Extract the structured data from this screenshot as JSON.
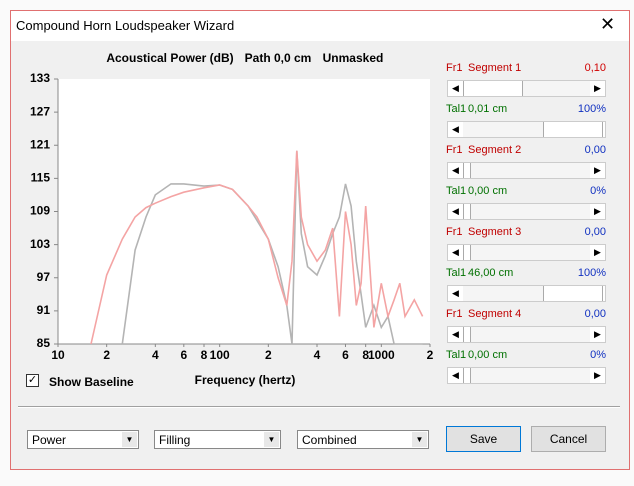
{
  "window": {
    "title": "Compound Horn Loudspeaker Wizard"
  },
  "chart_data": {
    "type": "line",
    "title": "Acoustical Power (dB)",
    "annotations": [
      "Path 0,0 cm",
      "Unmasked"
    ],
    "xlabel": "Frequency (hertz)",
    "x": [
      16,
      20,
      25,
      30,
      35,
      40,
      50,
      60,
      80,
      100,
      120,
      150,
      170,
      200,
      230,
      260,
      280,
      300,
      320,
      350,
      400,
      450,
      500,
      550,
      600,
      650,
      700,
      750,
      800,
      900,
      1000,
      1100,
      1200,
      1300,
      1400,
      1600,
      1800
    ],
    "series": [
      {
        "color": "#b4b4b4",
        "values": [
          null,
          null,
          85,
          102,
          108,
          112,
          114,
          114,
          113.6,
          113.8,
          113,
          110,
          107.4,
          104,
          99,
          92,
          85,
          120,
          105,
          99,
          97.5,
          101,
          105,
          108,
          114,
          110,
          100,
          94,
          88,
          92,
          88,
          90,
          85,
          85,
          85,
          85,
          85
        ]
      },
      {
        "color": "#f4a4a4",
        "values": [
          85,
          97.5,
          104,
          108,
          109.7,
          110.5,
          111.7,
          112.5,
          113.3,
          113.8,
          113,
          110,
          108,
          104,
          97,
          92,
          100,
          120,
          108,
          103,
          100,
          102,
          106,
          90,
          109,
          103,
          92,
          96,
          110,
          88,
          96,
          90,
          93,
          96,
          90,
          93,
          90
        ]
      }
    ],
    "log_x": true,
    "xlim": [
      10,
      2000
    ],
    "ylim": [
      85,
      133
    ],
    "yticks": [
      85,
      91,
      97,
      103,
      109,
      115,
      121,
      127,
      133
    ],
    "xticks": [
      10,
      {
        "value": 20,
        "label": "2"
      },
      {
        "value": 40,
        "label": "4"
      },
      {
        "value": 60,
        "label": "6"
      },
      {
        "value": 80,
        "label": "8"
      },
      100,
      {
        "value": 200,
        "label": "2"
      },
      {
        "value": 400,
        "label": "4"
      },
      {
        "value": 600,
        "label": "6"
      },
      {
        "value": 800,
        "label": "8"
      },
      1000,
      {
        "value": 2000,
        "label": "2"
      }
    ],
    "grid": false
  },
  "sliders": [
    {
      "prefix": "Fr1",
      "label": "Segment 1",
      "value": "0,10"
    },
    {
      "prefix": "Tal1",
      "label": "0,01 cm",
      "value": "100%"
    },
    {
      "prefix": "Fr1",
      "label": "Segment 2",
      "value": "0,00"
    },
    {
      "prefix": "Tal1",
      "label": "0,00 cm",
      "value": "0%"
    },
    {
      "prefix": "Fr1",
      "label": "Segment 3",
      "value": "0,00"
    },
    {
      "prefix": "Tal1",
      "label": "46,00 cm",
      "value": "100%"
    },
    {
      "prefix": "Fr1",
      "label": "Segment 4",
      "value": "0,00"
    },
    {
      "prefix": "Tal1",
      "label": "0,00 cm",
      "value": "0%"
    }
  ],
  "show_baseline": {
    "label": "Show Baseline",
    "checked": true
  },
  "dropdowns": [
    "Power",
    "Filling",
    "Combined"
  ],
  "buttons": [
    "Save",
    "Cancel"
  ]
}
